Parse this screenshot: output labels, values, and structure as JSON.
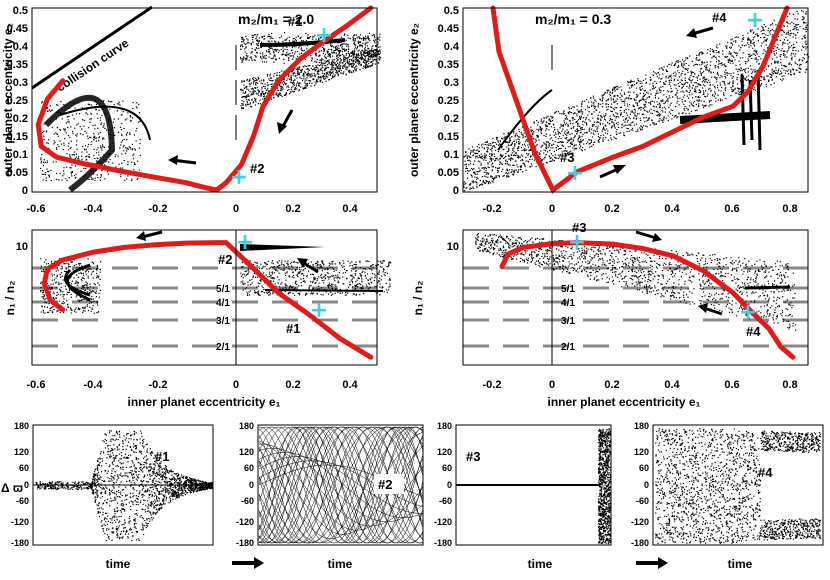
{
  "figure": {
    "top_left": {
      "title": "m₂/m₁ = 2.0",
      "ylabel": "outer planet eccentricity e₂",
      "annotation": "collision curve",
      "markers": [
        "#1",
        "#2"
      ],
      "xticks": [
        "-0.6",
        "-0.4",
        "-0.2",
        "0",
        "0.2",
        "0.4"
      ],
      "yticks": [
        "0",
        "0.05",
        "0.1",
        "0.15",
        "0.2",
        "0.25",
        "0.3",
        "0.35",
        "0.4",
        "0.45",
        "0.5"
      ]
    },
    "top_right": {
      "title": "m₂/m₁ = 0.3",
      "ylabel": "outer planet eccentricity e₂",
      "markers": [
        "#3",
        "#4"
      ],
      "xticks": [
        "-0.2",
        "0",
        "0.2",
        "0.4",
        "0.6",
        "0.8"
      ],
      "yticks": [
        "0",
        "0.05",
        "0.1",
        "0.15",
        "0.2",
        "0.25",
        "0.3",
        "0.35",
        "0.4",
        "0.45",
        "0.5"
      ]
    },
    "mid_left": {
      "ylabel": "n₁ / n₂",
      "xlabel": "inner planet eccentricity e₁",
      "ytick": "10",
      "resonances": [
        "5/1",
        "4/1",
        "3/1",
        "2/1"
      ],
      "markers": [
        "#2",
        "#1"
      ],
      "xticks": [
        "-0.6",
        "-0.4",
        "-0.2",
        "0",
        "0.2",
        "0.4"
      ]
    },
    "mid_right": {
      "ylabel": "n₁ / n₂",
      "xlabel": "inner planet eccentricity e₁",
      "ytick": "10",
      "resonances": [
        "5/1",
        "4/1",
        "3/1",
        "2/1"
      ],
      "markers": [
        "#3",
        "#4"
      ],
      "xticks": [
        "-0.2",
        "0",
        "0.2",
        "0.4",
        "0.6",
        "0.8"
      ]
    },
    "bottom": {
      "ylabel": "Δ ϖ",
      "xlabel": "time",
      "yticks": [
        "180",
        "120",
        "60",
        "0",
        "-60",
        "-120",
        "-180"
      ],
      "panels": [
        "#1",
        "#2",
        "#3",
        "#4"
      ]
    }
  },
  "chart_data": [
    {
      "type": "line",
      "title": "m₂/m₁ = 2.0",
      "xlabel": "inner planet eccentricity e₁",
      "ylabel": "outer planet eccentricity e₂",
      "xlim": [
        -0.6,
        0.5
      ],
      "ylim": [
        0,
        0.5
      ],
      "series": [
        {
          "name": "stable family (red)",
          "x": [
            -0.5,
            -0.55,
            -0.58,
            -0.57,
            -0.52,
            -0.42,
            -0.3,
            -0.2,
            -0.1,
            -0.03,
            0,
            0.03,
            0.08,
            0.12,
            0.15,
            0.2,
            0.27,
            0.35,
            0.42,
            0.5
          ],
          "y": [
            0.3,
            0.25,
            0.18,
            0.12,
            0.09,
            0.07,
            0.05,
            0.035,
            0.02,
            0.005,
            0,
            0.02,
            0.07,
            0.15,
            0.23,
            0.3,
            0.36,
            0.41,
            0.45,
            0.5
          ]
        },
        {
          "name": "collision curve",
          "x": [
            -0.6,
            -0.25
          ],
          "y": [
            0.29,
            0.5
          ]
        }
      ],
      "points": [
        {
          "label": "#1",
          "x": 0.3,
          "y": 0.43
        },
        {
          "label": "#2",
          "x": 0.03,
          "y": 0.03
        }
      ]
    },
    {
      "type": "line",
      "title": "m₂/m₁ = 0.3",
      "xlabel": "inner planet eccentricity e₁",
      "ylabel": "outer planet eccentricity e₂",
      "xlim": [
        -0.3,
        0.85
      ],
      "ylim": [
        0,
        0.5
      ],
      "series": [
        {
          "name": "stable family (red)",
          "x": [
            -0.2,
            -0.18,
            -0.12,
            -0.06,
            0,
            0.08,
            0.2,
            0.3,
            0.4,
            0.5,
            0.6,
            0.65,
            0.7,
            0.74,
            0.78
          ],
          "y": [
            0.5,
            0.38,
            0.24,
            0.1,
            0,
            0.05,
            0.09,
            0.12,
            0.16,
            0.2,
            0.23,
            0.27,
            0.34,
            0.42,
            0.5
          ]
        }
      ],
      "points": [
        {
          "label": "#3",
          "x": 0.07,
          "y": 0.045
        },
        {
          "label": "#4",
          "x": 0.69,
          "y": 0.49
        }
      ]
    },
    {
      "type": "line",
      "xlabel": "inner planet eccentricity e₁",
      "ylabel": "n₁ / n₂",
      "xlim": [
        -0.6,
        0.5
      ],
      "ylim": [
        1.4,
        14
      ],
      "series": [
        {
          "name": "stable family (red)",
          "x": [
            -0.5,
            -0.54,
            -0.56,
            -0.55,
            -0.5,
            -0.4,
            -0.3,
            -0.2,
            -0.1,
            0,
            0.03,
            0.1,
            0.2,
            0.3,
            0.4,
            0.5
          ],
          "y": [
            3.6,
            4.2,
            5.6,
            7.2,
            8.4,
            9.6,
            10.4,
            10.9,
            11.2,
            11.3,
            11.3,
            8.0,
            4.8,
            3.3,
            2.2,
            1.6
          ]
        }
      ],
      "resonance_lines": {
        "ratios": [
          "5/1",
          "4/1",
          "3/1",
          "2/1"
        ],
        "values": [
          5,
          4,
          3,
          2
        ]
      },
      "points": [
        {
          "label": "#2",
          "x": 0.03,
          "y": 11.3
        },
        {
          "label": "#1",
          "x": 0.29,
          "y": 3.5
        }
      ]
    },
    {
      "type": "line",
      "xlabel": "inner planet eccentricity e₁",
      "ylabel": "n₁ / n₂",
      "xlim": [
        -0.3,
        0.85
      ],
      "ylim": [
        1.4,
        14
      ],
      "series": [
        {
          "name": "stable family (red)",
          "x": [
            -0.17,
            -0.15,
            -0.1,
            0,
            0.08,
            0.2,
            0.3,
            0.4,
            0.5,
            0.6,
            0.66,
            0.72,
            0.76,
            0.8
          ],
          "y": [
            7.5,
            9.3,
            10.4,
            11.1,
            11.3,
            11.0,
            10.2,
            9.0,
            7.0,
            4.8,
            3.5,
            2.6,
            1.9,
            1.6
          ]
        }
      ],
      "resonance_lines": {
        "ratios": [
          "5/1",
          "4/1",
          "3/1",
          "2/1"
        ],
        "values": [
          5,
          4,
          3,
          2
        ]
      },
      "points": [
        {
          "label": "#3",
          "x": 0.08,
          "y": 11.3
        },
        {
          "label": "#4",
          "x": 0.66,
          "y": 3.4
        }
      ]
    },
    {
      "type": "scatter",
      "xlabel": "time",
      "ylabel": "Δ ϖ",
      "ylim": [
        -180,
        180
      ],
      "panels": [
        {
          "label": "#1",
          "behavior": "brief chaotic burst, then libration about 0"
        },
        {
          "label": "#2",
          "behavior": "libration growing into circulation between -180 and 180"
        },
        {
          "label": "#3",
          "behavior": "libration near 0, then chaotic"
        },
        {
          "label": "#4",
          "behavior": "chaotic, then circulation near ±180"
        }
      ]
    }
  ]
}
